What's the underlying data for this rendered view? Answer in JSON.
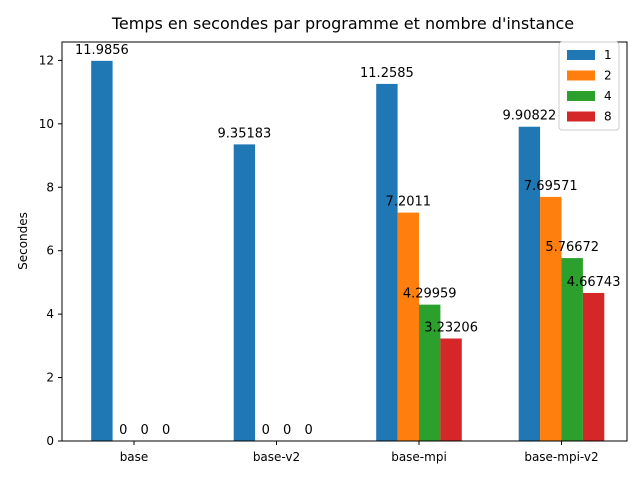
{
  "chart_data": {
    "type": "bar",
    "title": "Temps en secondes par programme et nombre d'instance",
    "xlabel": "",
    "ylabel": "Secondes",
    "categories": [
      "base",
      "base-v2",
      "base-mpi",
      "base-mpi-v2"
    ],
    "series": [
      {
        "name": "1",
        "color": "#1f77b4",
        "values": [
          11.9856,
          9.35183,
          11.2585,
          9.90822
        ],
        "labels": [
          "11.9856",
          "9.35183",
          "11.2585",
          "9.90822"
        ]
      },
      {
        "name": "2",
        "color": "#ff7f0e",
        "values": [
          0,
          0,
          7.2011,
          7.69571
        ],
        "labels": [
          "0",
          "0",
          "7.2011",
          "7.69571"
        ]
      },
      {
        "name": "4",
        "color": "#2ca02c",
        "values": [
          0,
          0,
          4.29959,
          5.76672
        ],
        "labels": [
          "0",
          "0",
          "4.29959",
          "5.76672"
        ]
      },
      {
        "name": "8",
        "color": "#d62728",
        "values": [
          0,
          0,
          3.23206,
          4.66743
        ],
        "labels": [
          "0",
          "0",
          "3.23206",
          "4.66743"
        ]
      }
    ],
    "ylim": [
      0,
      12.58
    ],
    "yticks": [
      0,
      2,
      4,
      6,
      8,
      10,
      12
    ],
    "ytick_labels": [
      "0",
      "2",
      "4",
      "6",
      "8",
      "10",
      "12"
    ],
    "grid": false,
    "legend_position": "top-right"
  }
}
